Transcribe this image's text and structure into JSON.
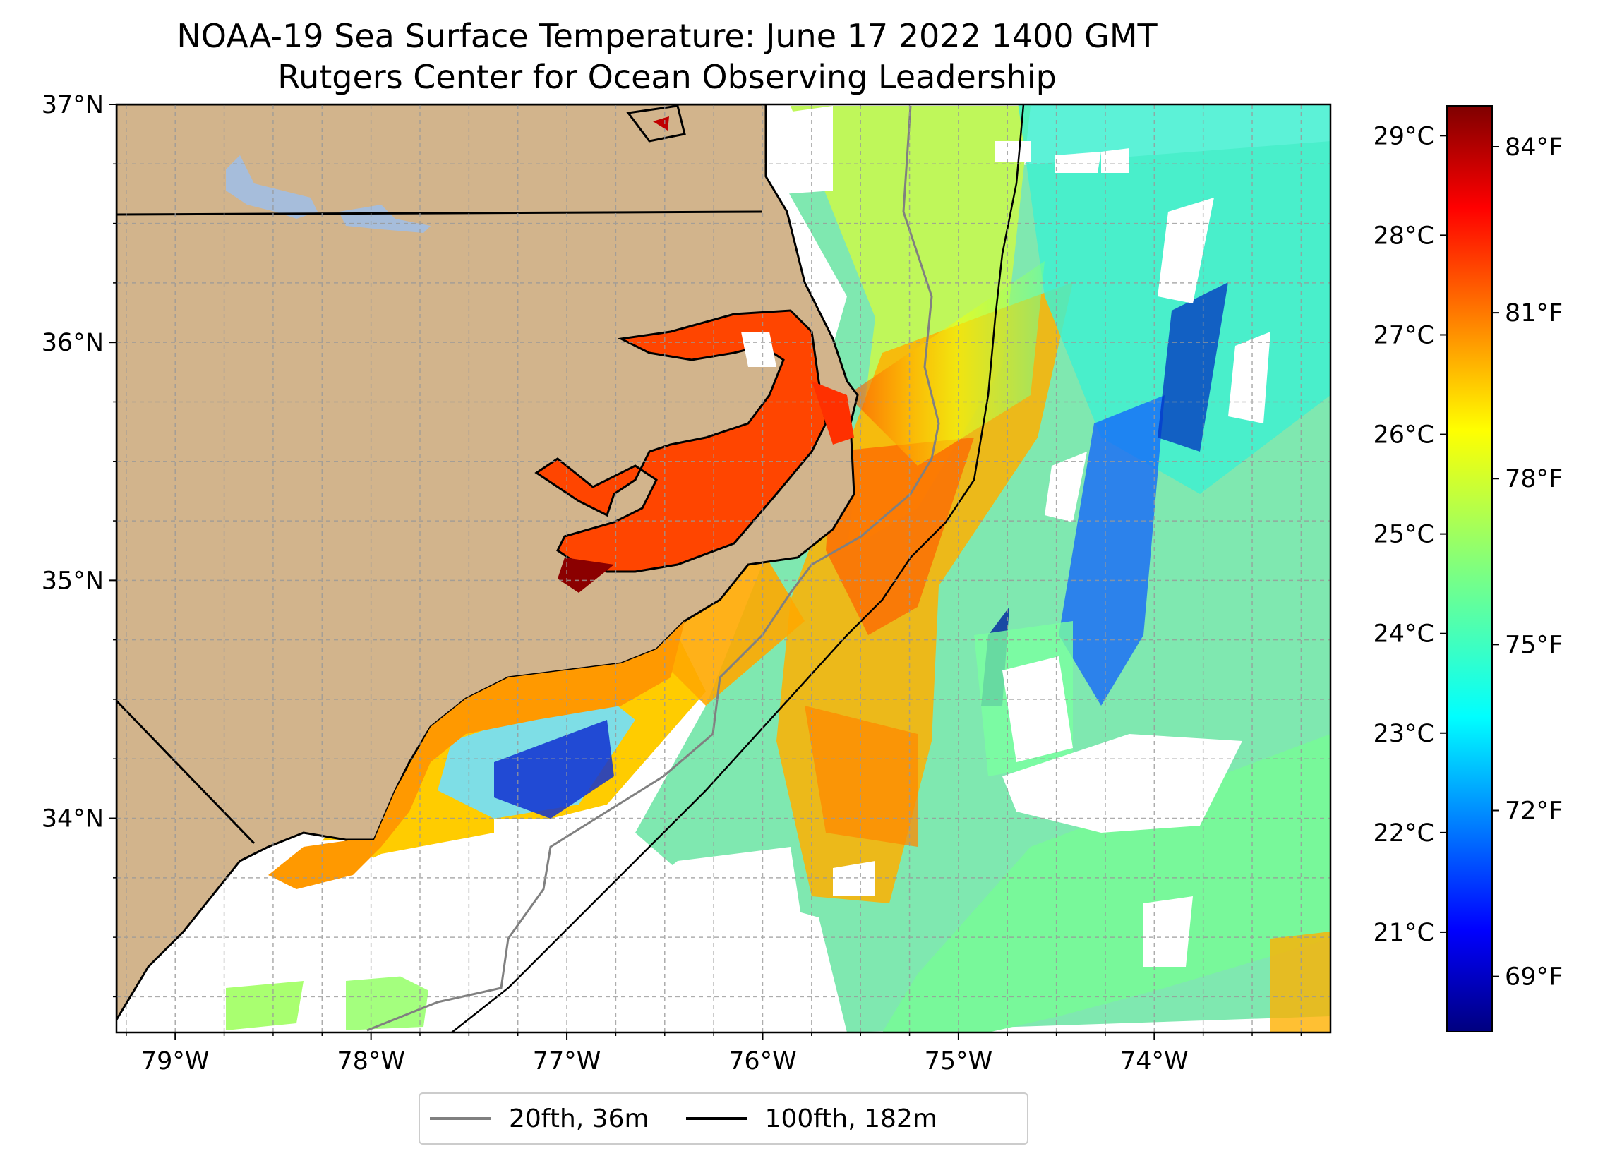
{
  "title": {
    "line1": "NOAA-19 Sea Surface Temperature: June 17 2022 1400 GMT",
    "line2": "Rutgers Center for Ocean Observing Leadership"
  },
  "map": {
    "lat_labels": [
      "37°N",
      "36°N",
      "35°N",
      "34°N"
    ],
    "lon_labels": [
      "79°W",
      "78°W",
      "77°W",
      "76°W",
      "75°W",
      "74°W"
    ],
    "extent": {
      "lon_min": -79.3,
      "lon_max": -73.1,
      "lat_min": 33.1,
      "lat_max": 37.0
    },
    "colors": {
      "land": "#d2b48c",
      "lakes": "#a6bddb",
      "coastline": "#000000",
      "isobath_20fth": "#808080",
      "isobath_100fth": "#000000"
    }
  },
  "colorbar": {
    "celsius_labels": [
      "29°C",
      "28°C",
      "27°C",
      "26°C",
      "25°C",
      "24°C",
      "23°C",
      "22°C",
      "21°C"
    ],
    "fahrenheit_labels": [
      "84°F",
      "81°F",
      "78°F",
      "75°F",
      "72°F",
      "69°F"
    ],
    "colormap": "jet",
    "range_c": [
      20.0,
      29.3
    ]
  },
  "legend": {
    "items": [
      {
        "label": "20fth, 36m",
        "color": "#808080"
      },
      {
        "label": "100fth, 182m",
        "color": "#000000"
      }
    ]
  }
}
